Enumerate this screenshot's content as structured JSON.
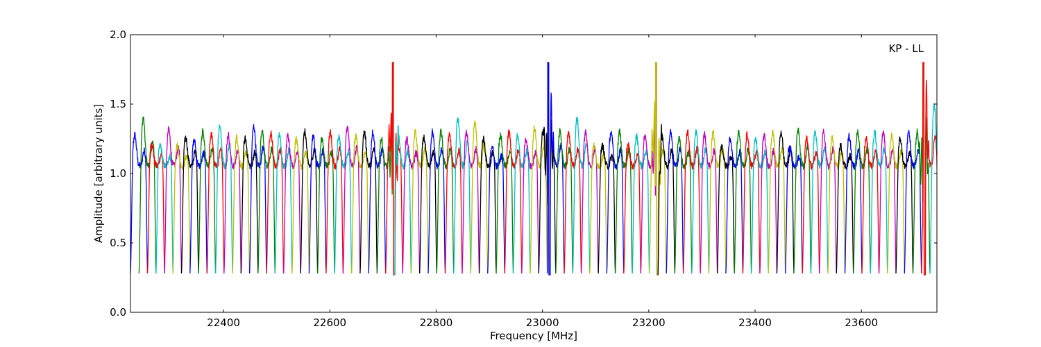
{
  "chart_data": {
    "type": "line",
    "annotation": "KP - LL",
    "xlabel": "Frequency [MHz]",
    "ylabel": "Amplitude [arbitrary units]",
    "xlim": [
      22225,
      23742
    ],
    "ylim": [
      0.0,
      2.0
    ],
    "x_ticks": [
      22400,
      22600,
      22800,
      23000,
      23200,
      23400,
      23600
    ],
    "x_tick_labels": [
      "22400",
      "22600",
      "22800",
      "23000",
      "23200",
      "23400",
      "23600"
    ],
    "y_ticks": [
      0.0,
      0.5,
      1.0,
      1.5,
      2.0
    ],
    "y_tick_labels": [
      "0.0",
      "0.5",
      "1.0",
      "1.5",
      "2.0"
    ],
    "grid": false,
    "colors": [
      "#0000ff",
      "#008000",
      "#ff0000",
      "#00bfbf",
      "#bf00bf",
      "#bfbf00",
      "#000000"
    ],
    "channel_width_mhz": 32,
    "channel_spacing_mhz": 16,
    "channel_starts_mhz": [
      22225,
      22241,
      22257,
      22273,
      22289,
      22305,
      22321,
      22337,
      22353,
      22369,
      22385,
      22401,
      22417,
      22433,
      22449,
      22465,
      22481,
      22497,
      22513,
      22529,
      22545,
      22561,
      22577,
      22593,
      22609,
      22625,
      22641,
      22657,
      22673,
      22689,
      22705,
      22721,
      22737,
      22753,
      22769,
      22785,
      22801,
      22817,
      22833,
      22849,
      22865,
      22881,
      22897,
      22913,
      22929,
      22945,
      22961,
      22977,
      22993,
      23009,
      23025,
      23041,
      23057,
      23073,
      23089,
      23105,
      23121,
      23137,
      23153,
      23169,
      23185,
      23201,
      23217,
      23233,
      23249,
      23265,
      23281,
      23297,
      23313,
      23329,
      23345,
      23361,
      23377,
      23393,
      23409,
      23425,
      23441,
      23457,
      23473,
      23489,
      23505,
      23521,
      23537,
      23553,
      23569,
      23585,
      23601,
      23617,
      23633,
      23649,
      23665,
      23681,
      23697,
      23713,
      23729
    ],
    "channel_peaks": [
      1.28,
      1.4,
      1.22,
      1.2,
      1.32,
      1.2,
      1.26,
      1.24,
      1.3,
      1.28,
      1.35,
      1.28,
      1.26,
      1.25,
      1.34,
      1.3,
      1.3,
      1.28,
      1.27,
      1.25,
      1.3,
      1.27,
      1.25,
      1.3,
      1.27,
      1.33,
      1.27,
      1.3,
      1.3,
      1.25,
      1.3,
      1.27,
      1.25,
      1.3,
      1.26,
      1.3,
      1.3,
      1.28,
      1.4,
      1.3,
      1.38,
      1.25,
      1.2,
      1.28,
      1.3,
      1.27,
      1.25,
      1.33,
      1.3,
      1.35,
      1.3,
      1.3,
      1.4,
      1.3,
      1.2,
      1.2,
      1.3,
      1.3,
      1.2,
      1.27,
      1.28,
      1.3,
      1.27,
      1.3,
      1.25,
      1.3,
      1.3,
      1.28,
      1.3,
      1.2,
      1.25,
      1.3,
      1.28,
      1.25,
      1.27,
      1.3,
      1.3,
      1.2,
      1.32,
      1.25,
      1.3,
      1.3,
      1.25,
      1.2,
      1.27,
      1.3,
      1.25,
      1.3,
      1.3,
      1.27,
      1.25,
      1.3,
      1.3,
      1.5,
      1.5
    ],
    "channel_min": 0.28,
    "spectral_lines": [
      {
        "center_mhz": 22720,
        "min": 0.17,
        "max": 2.0
      },
      {
        "center_mhz": 23012,
        "min": 0.17,
        "max": 2.0
      },
      {
        "center_mhz": 23215,
        "min": 0.17,
        "max": 2.0
      },
      {
        "center_mhz": 23718,
        "min": 0.17,
        "max": 2.0
      }
    ]
  }
}
